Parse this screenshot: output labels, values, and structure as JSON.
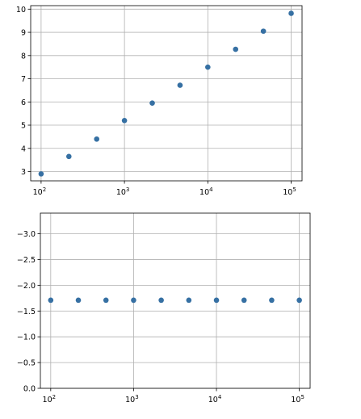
{
  "chart_data": [
    {
      "type": "scatter",
      "xscale": "log",
      "xlim": [
        75,
        135000
      ],
      "ylim": [
        2.6,
        10.15
      ],
      "yinverted": false,
      "grid": true,
      "color": "#3670a3",
      "x": [
        100,
        215.4,
        464.2,
        1000,
        2154.4,
        4641.6,
        10000,
        21544,
        46416,
        100000
      ],
      "y": [
        2.9,
        3.65,
        4.4,
        5.2,
        5.95,
        6.72,
        7.5,
        8.27,
        9.05,
        9.82
      ],
      "xticks": [
        {
          "value": 100,
          "base": "10",
          "exp": "2"
        },
        {
          "value": 1000,
          "base": "10",
          "exp": "3"
        },
        {
          "value": 10000,
          "base": "10",
          "exp": "4"
        },
        {
          "value": 100000,
          "base": "10",
          "exp": "5"
        }
      ],
      "yticks": [
        {
          "value": 3,
          "label": "3"
        },
        {
          "value": 4,
          "label": "4"
        },
        {
          "value": 5,
          "label": "5"
        },
        {
          "value": 6,
          "label": "6"
        },
        {
          "value": 7,
          "label": "7"
        },
        {
          "value": 8,
          "label": "8"
        },
        {
          "value": 9,
          "label": "9"
        },
        {
          "value": 10,
          "label": "10"
        }
      ]
    },
    {
      "type": "scatter",
      "xscale": "log",
      "xlim": [
        75,
        135000
      ],
      "ylim": [
        0,
        -3.4
      ],
      "yinverted": true,
      "grid": true,
      "color": "#3670a3",
      "x": [
        100,
        215.4,
        464.2,
        1000,
        2154.4,
        4641.6,
        10000,
        21544,
        46416,
        100000
      ],
      "y": [
        -1.71,
        -1.71,
        -1.71,
        -1.71,
        -1.71,
        -1.71,
        -1.71,
        -1.71,
        -1.71,
        -1.71
      ],
      "xticks": [
        {
          "value": 100,
          "base": "10",
          "exp": "2"
        },
        {
          "value": 1000,
          "base": "10",
          "exp": "3"
        },
        {
          "value": 10000,
          "base": "10",
          "exp": "4"
        },
        {
          "value": 100000,
          "base": "10",
          "exp": "5"
        }
      ],
      "yticks": [
        {
          "value": -3.0,
          "label": "−3.0"
        },
        {
          "value": -2.5,
          "label": "−2.5"
        },
        {
          "value": -2.0,
          "label": "−2.0"
        },
        {
          "value": -1.5,
          "label": "−1.5"
        },
        {
          "value": -1.0,
          "label": "−1.0"
        },
        {
          "value": -0.5,
          "label": "−0.5"
        },
        {
          "value": 0.0,
          "label": "0.0"
        }
      ]
    }
  ]
}
